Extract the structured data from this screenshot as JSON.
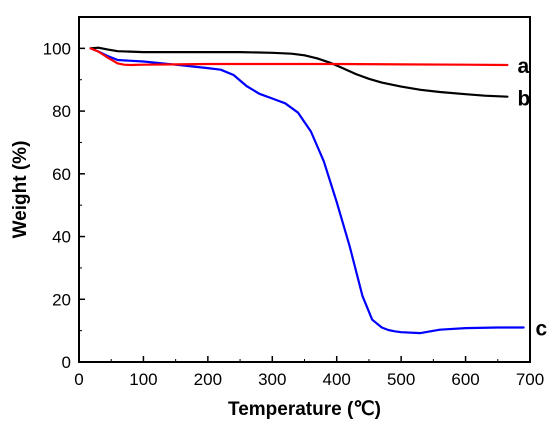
{
  "chart_data": {
    "type": "line",
    "title": "",
    "xlabel": "Temperature (℃)",
    "ylabel": "Weight (%)",
    "xlim": [
      0,
      700
    ],
    "ylim": [
      0,
      110
    ],
    "xticks": [
      "0",
      "100",
      "200",
      "300",
      "400",
      "500",
      "600",
      "700"
    ],
    "yticks": [
      "0",
      "20",
      "40",
      "60",
      "80",
      "100"
    ],
    "grid": false,
    "legend": "none",
    "series": [
      {
        "name": "a",
        "color": "#ff0000",
        "x": [
          18,
          30,
          45,
          60,
          70,
          80,
          100,
          150,
          200,
          300,
          400,
          500,
          600,
          665
        ],
        "y": [
          100,
          99,
          97,
          95.2,
          94.8,
          94.7,
          94.8,
          94.9,
          95,
          95,
          95,
          94.9,
          94.8,
          94.7
        ]
      },
      {
        "name": "b",
        "color": "#000000",
        "x": [
          18,
          30,
          45,
          60,
          100,
          150,
          200,
          250,
          300,
          330,
          350,
          370,
          390,
          410,
          430,
          450,
          470,
          500,
          530,
          560,
          600,
          630,
          665
        ],
        "y": [
          100,
          100.2,
          99.6,
          99.1,
          98.8,
          98.8,
          98.8,
          98.8,
          98.6,
          98.3,
          97.8,
          96.8,
          95.4,
          93.6,
          91.8,
          90.3,
          89.1,
          87.8,
          86.8,
          86.1,
          85.4,
          84.9,
          84.6
        ]
      },
      {
        "name": "c",
        "color": "#0000ff",
        "x": [
          18,
          30,
          45,
          60,
          100,
          150,
          200,
          220,
          240,
          260,
          280,
          300,
          320,
          340,
          360,
          380,
          400,
          420,
          440,
          455,
          470,
          480,
          490,
          500,
          530,
          560,
          600,
          650,
          690
        ],
        "y": [
          100,
          99,
          97.5,
          96.3,
          95.8,
          94.8,
          93.7,
          93.2,
          91.5,
          88,
          85.5,
          84,
          82.5,
          79.5,
          73.5,
          64,
          51,
          37,
          21,
          13.5,
          11,
          10.2,
          9.8,
          9.5,
          9.2,
          10.3,
          10.8,
          11,
          11
        ]
      }
    ]
  }
}
